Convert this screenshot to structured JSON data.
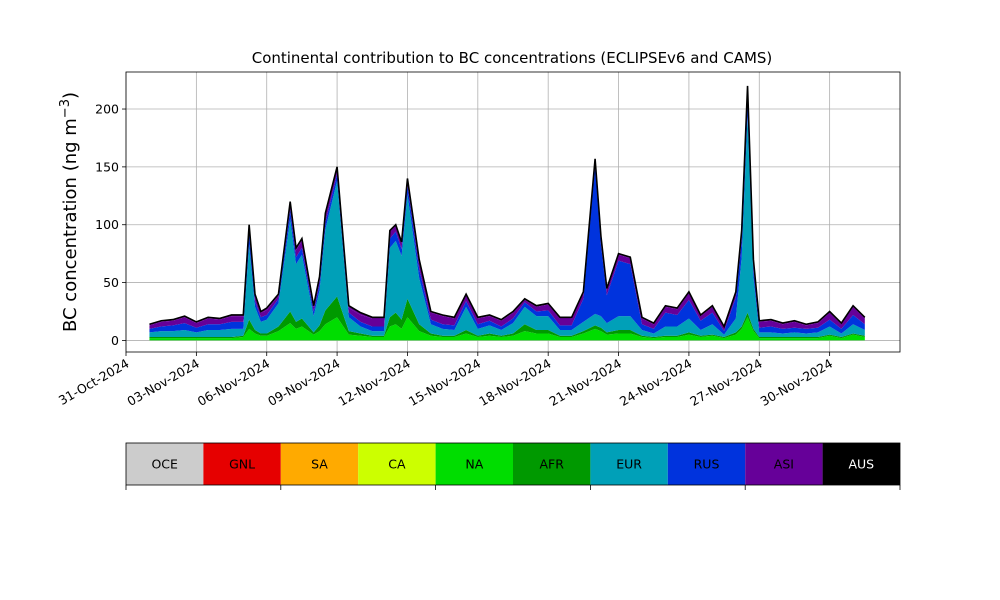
{
  "chart_data": {
    "type": "area",
    "title": "Continental contribution to BC concentrations (ECLIPSEv6 and CAMS)",
    "ylabel": "BC concentration (ng m⁻³)",
    "ylabel_main": "BC concentration (ng m",
    "ylabel_sup": "−3",
    "ylabel_end": ")",
    "xlabel": "",
    "grid": true,
    "xlim": [
      "2024-10-31",
      "2024-12-03"
    ],
    "ylim": [
      -10,
      232
    ],
    "yticks": [
      0,
      50,
      100,
      150,
      200
    ],
    "xticks": [
      "31-Oct-2024",
      "03-Nov-2024",
      "06-Nov-2024",
      "09-Nov-2024",
      "12-Nov-2024",
      "15-Nov-2024",
      "18-Nov-2024",
      "21-Nov-2024",
      "24-Nov-2024",
      "27-Nov-2024",
      "30-Nov-2024"
    ],
    "xtick_dates": [
      "2024-10-31",
      "2024-11-03",
      "2024-11-06",
      "2024-11-09",
      "2024-11-12",
      "2024-11-15",
      "2024-11-18",
      "2024-11-21",
      "2024-11-24",
      "2024-11-27",
      "2024-11-30"
    ],
    "legend_placement": "bottom colorbar",
    "series": [
      {
        "name": "OCE",
        "color": "#cccccc"
      },
      {
        "name": "GNL",
        "color": "#e60000"
      },
      {
        "name": "SA",
        "color": "#ffaa00"
      },
      {
        "name": "CA",
        "color": "#ccff00"
      },
      {
        "name": "NA",
        "color": "#00dd00"
      },
      {
        "name": "AFR",
        "color": "#009900"
      },
      {
        "name": "EUR",
        "color": "#00a0b8"
      },
      {
        "name": "RUS",
        "color": "#0033dd"
      },
      {
        "name": "ASI",
        "color": "#660099"
      },
      {
        "name": "AUS",
        "color": "#000000"
      }
    ],
    "x": [
      "2024-11-01",
      "2024-11-01T12",
      "2024-11-02",
      "2024-11-02T12",
      "2024-11-03",
      "2024-11-03T12",
      "2024-11-04",
      "2024-11-04T12",
      "2024-11-05",
      "2024-11-05T06",
      "2024-11-05T12",
      "2024-11-05T18",
      "2024-11-06",
      "2024-11-06T12",
      "2024-11-07",
      "2024-11-07T06",
      "2024-11-07T12",
      "2024-11-08",
      "2024-11-08T06",
      "2024-11-08T12",
      "2024-11-09",
      "2024-11-09T12",
      "2024-11-10",
      "2024-11-10T12",
      "2024-11-11",
      "2024-11-11T06",
      "2024-11-11T12",
      "2024-11-11T18",
      "2024-11-12",
      "2024-11-12T12",
      "2024-11-13",
      "2024-11-13T12",
      "2024-11-14",
      "2024-11-14T12",
      "2024-11-15",
      "2024-11-15T12",
      "2024-11-16",
      "2024-11-16T12",
      "2024-11-17",
      "2024-11-17T12",
      "2024-11-18",
      "2024-11-18T12",
      "2024-11-19",
      "2024-11-19T12",
      "2024-11-20",
      "2024-11-20T06",
      "2024-11-20T12",
      "2024-11-21",
      "2024-11-21T12",
      "2024-11-22",
      "2024-11-22T12",
      "2024-11-23",
      "2024-11-23T12",
      "2024-11-24",
      "2024-11-24T12",
      "2024-11-25",
      "2024-11-25T12",
      "2024-11-26",
      "2024-11-26T06",
      "2024-11-26T12",
      "2024-11-26T18",
      "2024-11-27",
      "2024-11-27T12",
      "2024-11-28",
      "2024-11-28T12",
      "2024-11-29",
      "2024-11-29T12",
      "2024-11-30",
      "2024-11-30T12",
      "2024-12-01",
      "2024-12-01T12"
    ],
    "totals": [
      14,
      17,
      18,
      21,
      16,
      20,
      19,
      22,
      22,
      100,
      40,
      25,
      28,
      40,
      120,
      80,
      88,
      30,
      55,
      110,
      150,
      30,
      24,
      20,
      20,
      95,
      100,
      85,
      140,
      70,
      25,
      22,
      20,
      40,
      20,
      22,
      18,
      25,
      36,
      30,
      32,
      20,
      20,
      42,
      157,
      90,
      45,
      75,
      72,
      20,
      15,
      30,
      28,
      42,
      22,
      30,
      12,
      42,
      95,
      220,
      70,
      17,
      18,
      15,
      17,
      14,
      16,
      25,
      15,
      30,
      20
    ],
    "values": {
      "NA": [
        2,
        2,
        2,
        2,
        2,
        2,
        2,
        2,
        3,
        10,
        6,
        4,
        4,
        8,
        15,
        10,
        12,
        5,
        8,
        14,
        20,
        5,
        4,
        3,
        3,
        12,
        14,
        10,
        20,
        8,
        4,
        3,
        3,
        6,
        3,
        4,
        3,
        4,
        8,
        6,
        6,
        3,
        3,
        6,
        10,
        8,
        5,
        6,
        6,
        3,
        2,
        3,
        3,
        5,
        3,
        4,
        2,
        5,
        10,
        20,
        8,
        2,
        2,
        2,
        2,
        2,
        2,
        4,
        2,
        5,
        3
      ],
      "AFR": [
        1,
        1,
        1,
        1,
        1,
        1,
        1,
        1,
        1,
        8,
        3,
        2,
        2,
        4,
        10,
        6,
        7,
        2,
        5,
        12,
        18,
        3,
        2,
        1,
        1,
        8,
        10,
        8,
        16,
        6,
        2,
        1,
        1,
        3,
        1,
        2,
        1,
        2,
        6,
        3,
        3,
        1,
        1,
        2,
        3,
        3,
        2,
        3,
        3,
        1,
        1,
        1,
        1,
        2,
        1,
        1,
        1,
        2,
        2,
        4,
        2,
        1,
        1,
        1,
        1,
        1,
        1,
        1,
        1,
        1,
        1
      ],
      "EUR": [
        4,
        5,
        5,
        6,
        4,
        6,
        6,
        7,
        6,
        65,
        20,
        10,
        12,
        20,
        80,
        50,
        55,
        14,
        30,
        70,
        100,
        12,
        6,
        4,
        4,
        60,
        62,
        55,
        90,
        40,
        8,
        6,
        5,
        20,
        6,
        7,
        5,
        9,
        15,
        12,
        12,
        5,
        5,
        8,
        10,
        10,
        8,
        12,
        12,
        5,
        3,
        8,
        8,
        12,
        5,
        9,
        2,
        12,
        60,
        170,
        45,
        4,
        4,
        3,
        4,
        3,
        4,
        7,
        3,
        8,
        5
      ],
      "RUS": [
        3,
        4,
        5,
        6,
        4,
        5,
        5,
        6,
        6,
        10,
        5,
        4,
        4,
        4,
        8,
        6,
        6,
        4,
        6,
        6,
        6,
        4,
        4,
        4,
        4,
        8,
        8,
        6,
        8,
        8,
        4,
        4,
        4,
        5,
        4,
        4,
        3,
        4,
        4,
        4,
        5,
        4,
        4,
        20,
        128,
        62,
        24,
        48,
        45,
        5,
        4,
        12,
        10,
        16,
        8,
        10,
        3,
        18,
        14,
        16,
        8,
        4,
        5,
        4,
        4,
        4,
        4,
        6,
        4,
        8,
        5
      ],
      "ASI": [
        3,
        4,
        4,
        5,
        4,
        5,
        4,
        5,
        5,
        4,
        4,
        4,
        4,
        3,
        6,
        6,
        6,
        4,
        4,
        6,
        4,
        4,
        6,
        7,
        7,
        6,
        5,
        5,
        5,
        7,
        6,
        7,
        6,
        5,
        5,
        4,
        5,
        5,
        2,
        4,
        5,
        6,
        6,
        5,
        5,
        6,
        5,
        5,
        5,
        5,
        4,
        5,
        5,
        6,
        4,
        5,
        3,
        4,
        8,
        9,
        6,
        5,
        5,
        4,
        5,
        3,
        4,
        6,
        4,
        7,
        5
      ]
    }
  }
}
